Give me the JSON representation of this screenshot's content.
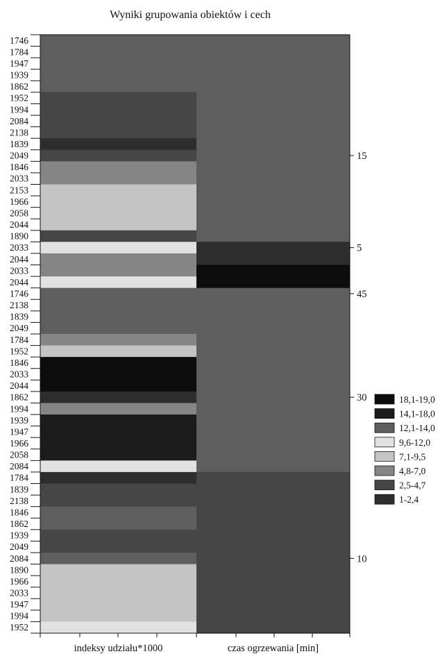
{
  "chart_data": {
    "type": "heatmap",
    "title": "Wyniki grupowania obiektów i cech",
    "columns": [
      "indeksy udziału*1000",
      "czas ogrzewania [min]"
    ],
    "rows": [
      {
        "label": "1746",
        "v": [
          12.5,
          12.5
        ]
      },
      {
        "label": "1784",
        "v": [
          12.5,
          12.5
        ]
      },
      {
        "label": "1947",
        "v": [
          12.5,
          12.5
        ]
      },
      {
        "label": "1939",
        "v": [
          12.5,
          12.5
        ]
      },
      {
        "label": "1862",
        "v": [
          12.5,
          12.5
        ]
      },
      {
        "label": "1952",
        "v": [
          3.5,
          12.5
        ]
      },
      {
        "label": "1994",
        "v": [
          3.5,
          12.5
        ]
      },
      {
        "label": "2084",
        "v": [
          3.5,
          12.5
        ]
      },
      {
        "label": "2138",
        "v": [
          3.5,
          12.5
        ]
      },
      {
        "label": "1839",
        "v": [
          1.5,
          12.5
        ]
      },
      {
        "label": "2049",
        "v": [
          3.5,
          12.5
        ]
      },
      {
        "label": "1846",
        "v": [
          5.5,
          12.5
        ]
      },
      {
        "label": "2033",
        "v": [
          6.5,
          12.5
        ]
      },
      {
        "label": "2153",
        "v": [
          8.0,
          12.5
        ]
      },
      {
        "label": "1966",
        "v": [
          8.0,
          12.5
        ]
      },
      {
        "label": "2058",
        "v": [
          8.0,
          12.5
        ]
      },
      {
        "label": "2044",
        "v": [
          9.0,
          12.5
        ]
      },
      {
        "label": "1890",
        "v": [
          3.5,
          12.5
        ]
      },
      {
        "label": "2033",
        "v": [
          11.0,
          2.0
        ]
      },
      {
        "label": "2044",
        "v": [
          5.5,
          2.0
        ]
      },
      {
        "label": "2033",
        "v": [
          6.0,
          18.5
        ]
      },
      {
        "label": "2044",
        "v": [
          11.0,
          18.5
        ]
      },
      {
        "label": "1746",
        "v": [
          12.5,
          12.5
        ]
      },
      {
        "label": "2138",
        "v": [
          12.5,
          12.5
        ]
      },
      {
        "label": "1839",
        "v": [
          12.5,
          12.5
        ]
      },
      {
        "label": "2049",
        "v": [
          12.5,
          12.5
        ]
      },
      {
        "label": "1784",
        "v": [
          6.0,
          12.5
        ]
      },
      {
        "label": "1952",
        "v": [
          7.5,
          12.5
        ]
      },
      {
        "label": "1846",
        "v": [
          18.5,
          12.5
        ]
      },
      {
        "label": "2033",
        "v": [
          18.5,
          12.5
        ]
      },
      {
        "label": "2044",
        "v": [
          18.5,
          12.5
        ]
      },
      {
        "label": "1862",
        "v": [
          2.0,
          12.5
        ]
      },
      {
        "label": "1994",
        "v": [
          6.5,
          12.5
        ]
      },
      {
        "label": "1939",
        "v": [
          16.0,
          12.5
        ]
      },
      {
        "label": "1947",
        "v": [
          16.0,
          12.5
        ]
      },
      {
        "label": "1966",
        "v": [
          16.0,
          12.5
        ]
      },
      {
        "label": "2058",
        "v": [
          16.0,
          12.5
        ]
      },
      {
        "label": "2084",
        "v": [
          10.5,
          12.5
        ]
      },
      {
        "label": "1784",
        "v": [
          2.0,
          3.5
        ]
      },
      {
        "label": "1839",
        "v": [
          3.5,
          3.5
        ]
      },
      {
        "label": "2138",
        "v": [
          3.5,
          3.5
        ]
      },
      {
        "label": "1846",
        "v": [
          12.5,
          3.5
        ]
      },
      {
        "label": "1862",
        "v": [
          12.5,
          3.5
        ]
      },
      {
        "label": "1939",
        "v": [
          3.5,
          3.5
        ]
      },
      {
        "label": "2049",
        "v": [
          3.5,
          3.5
        ]
      },
      {
        "label": "2084",
        "v": [
          12.5,
          3.5
        ]
      },
      {
        "label": "1890",
        "v": [
          9.0,
          3.5
        ]
      },
      {
        "label": "1966",
        "v": [
          7.5,
          3.5
        ]
      },
      {
        "label": "2033",
        "v": [
          7.5,
          3.5
        ]
      },
      {
        "label": "1947",
        "v": [
          9.0,
          3.5
        ]
      },
      {
        "label": "1994",
        "v": [
          7.5,
          3.5
        ]
      },
      {
        "label": "1952",
        "v": [
          10.5,
          3.5
        ]
      }
    ],
    "right_labels": [
      {
        "row": 10,
        "text": "15"
      },
      {
        "row": 18,
        "text": "5"
      },
      {
        "row": 22,
        "text": "45"
      },
      {
        "row": 31,
        "text": "30"
      },
      {
        "row": 45,
        "text": "10"
      }
    ],
    "legend": {
      "placement": "right",
      "items": [
        {
          "label": "18,1-19,0",
          "color": "#0c0c0c"
        },
        {
          "label": "14,1-18,0",
          "color": "#1c1c1c"
        },
        {
          "label": "12,1-14,0",
          "color": "#5e5e5e"
        },
        {
          "label": "9,6-12,0",
          "color": "#e1e1e1"
        },
        {
          "label": "7,1-9,5",
          "color": "#c4c4c4"
        },
        {
          "label": "4,8-7,0",
          "color": "#858585"
        },
        {
          "label": "2,5-4,7",
          "color": "#464646"
        },
        {
          "label": "1-2,4",
          "color": "#2e2e2e"
        }
      ]
    },
    "grid": false
  }
}
